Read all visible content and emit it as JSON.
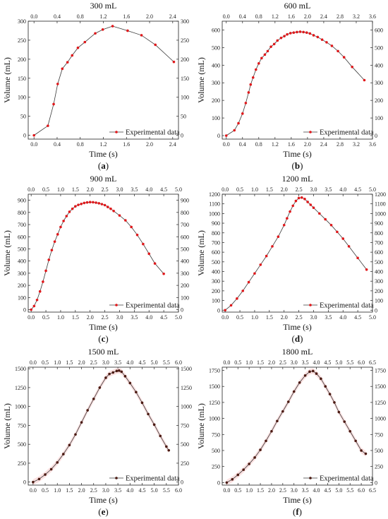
{
  "colors": {
    "red_series": "#e0181b",
    "dark_series": "#4a1a12",
    "line_dark": "#3a3a3a",
    "band": "#f8c8c8"
  },
  "chart_data": [
    {
      "type": "line",
      "title": "300 mL",
      "panel_label": "(a)",
      "xlabel": "Time (s)",
      "ylabel": "Volume (mL)",
      "xlim": [
        -0.1,
        2.5
      ],
      "ylim": [
        -10,
        300
      ],
      "xticks": [
        0.0,
        0.4,
        0.8,
        1.2,
        1.6,
        2.0,
        2.4
      ],
      "xtick_labels": [
        "0.0",
        "0.4",
        "0.8",
        "1.2",
        "1.6",
        "2.0",
        "2.4"
      ],
      "yticks": [
        0,
        50,
        100,
        150,
        200,
        250,
        300
      ],
      "ytick_labels": [
        "0",
        "50",
        "100",
        "150",
        "200",
        "250",
        "300"
      ],
      "legend": "Experimental data",
      "marker": "red",
      "band": false,
      "series": [
        {
          "name": "Experimental data",
          "x": [
            0.0,
            0.24,
            0.34,
            0.41,
            0.49,
            0.58,
            0.66,
            0.76,
            0.88,
            1.06,
            1.19,
            1.36,
            1.62,
            1.86,
            2.1,
            2.42
          ],
          "y": [
            0,
            25,
            82,
            135,
            175,
            192,
            210,
            230,
            245,
            268,
            278,
            287,
            275,
            263,
            238,
            193
          ]
        }
      ]
    },
    {
      "type": "line",
      "title": "600 mL",
      "panel_label": "(b)",
      "xlabel": "Time (s)",
      "ylabel": "Volume (mL)",
      "xlim": [
        -0.1,
        3.6
      ],
      "ylim": [
        -20,
        650
      ],
      "xticks": [
        0.0,
        0.4,
        0.8,
        1.2,
        1.6,
        2.0,
        2.4,
        2.8,
        3.2,
        3.6
      ],
      "xtick_labels": [
        "0.0",
        "0.4",
        "0.8",
        "1.2",
        "1.6",
        "2.0",
        "2.4",
        "2.8",
        "3.2",
        "3.6"
      ],
      "yticks": [
        0,
        100,
        200,
        300,
        400,
        500,
        600
      ],
      "ytick_labels": [
        "0",
        "100",
        "200",
        "300",
        "400",
        "500",
        "600"
      ],
      "legend": "Experimental data",
      "marker": "red",
      "band": false,
      "series": [
        {
          "name": "Experimental data",
          "x": [
            0.0,
            0.2,
            0.3,
            0.4,
            0.48,
            0.55,
            0.6,
            0.66,
            0.73,
            0.8,
            0.87,
            0.95,
            1.02,
            1.1,
            1.18,
            1.26,
            1.35,
            1.43,
            1.5,
            1.58,
            1.66,
            1.74,
            1.82,
            1.9,
            1.98,
            2.06,
            2.15,
            2.25,
            2.36,
            2.47,
            2.6,
            2.75,
            2.9,
            3.1,
            3.4
          ],
          "y": [
            0,
            30,
            70,
            125,
            185,
            245,
            290,
            330,
            375,
            410,
            440,
            460,
            480,
            505,
            520,
            540,
            555,
            565,
            575,
            582,
            585,
            588,
            590,
            588,
            585,
            580,
            570,
            560,
            545,
            530,
            510,
            480,
            445,
            390,
            315
          ]
        }
      ]
    },
    {
      "type": "line",
      "title": "900 mL",
      "panel_label": "(c)",
      "xlabel": "Time (s)",
      "ylabel": "Volume (mL)",
      "xlim": [
        -0.1,
        5.0
      ],
      "ylim": [
        -20,
        950
      ],
      "xticks": [
        0.0,
        0.5,
        1.0,
        1.5,
        2.0,
        2.5,
        3.0,
        3.5,
        4.0,
        4.5,
        5.0
      ],
      "xtick_labels": [
        "0.0",
        "0.5",
        "1.0",
        "1.5",
        "2.0",
        "2.5",
        "3.0",
        "3.5",
        "4.0",
        "4.5",
        "5.0"
      ],
      "yticks": [
        0,
        100,
        200,
        300,
        400,
        500,
        600,
        700,
        800,
        900
      ],
      "ytick_labels": [
        "0",
        "100",
        "200",
        "300",
        "400",
        "500",
        "600",
        "700",
        "800",
        "900"
      ],
      "legend": "Experimental data",
      "marker": "red",
      "band": false,
      "series": [
        {
          "name": "Experimental data",
          "x": [
            0.0,
            0.1,
            0.2,
            0.3,
            0.4,
            0.5,
            0.6,
            0.7,
            0.8,
            0.9,
            1.0,
            1.1,
            1.2,
            1.3,
            1.4,
            1.5,
            1.6,
            1.7,
            1.8,
            1.9,
            2.0,
            2.1,
            2.2,
            2.3,
            2.4,
            2.5,
            2.6,
            2.7,
            2.8,
            3.0,
            3.2,
            3.4,
            3.6,
            3.8,
            4.0,
            4.2,
            4.5
          ],
          "y": [
            0,
            30,
            80,
            150,
            230,
            320,
            410,
            490,
            560,
            620,
            680,
            730,
            770,
            805,
            830,
            850,
            862,
            870,
            878,
            882,
            885,
            884,
            880,
            875,
            868,
            860,
            845,
            830,
            812,
            775,
            735,
            680,
            615,
            540,
            460,
            380,
            295
          ]
        }
      ]
    },
    {
      "type": "line",
      "title": "1200 mL",
      "panel_label": "(d)",
      "xlabel": "Time (s)",
      "ylabel": "Volume (mL)",
      "xlim": [
        -0.1,
        5.0
      ],
      "ylim": [
        -20,
        1200
      ],
      "xticks": [
        0.0,
        0.5,
        1.0,
        1.5,
        2.0,
        2.5,
        3.0,
        3.5,
        4.0,
        4.5,
        5.0
      ],
      "xtick_labels": [
        "0.0",
        "0.5",
        "1.0",
        "1.5",
        "2.0",
        "2.5",
        "3.0",
        "3.5",
        "4.0",
        "4.5",
        "5.0"
      ],
      "yticks": [
        0,
        100,
        200,
        300,
        400,
        500,
        600,
        700,
        800,
        900,
        1000,
        1100,
        1200
      ],
      "ytick_labels": [
        "0",
        "100",
        "200",
        "300",
        "400",
        "500",
        "600",
        "700",
        "800",
        "900",
        "1000",
        "1100",
        "1200"
      ],
      "legend": "Experimental data",
      "marker": "red",
      "band": false,
      "series": [
        {
          "name": "Experimental data",
          "x": [
            0.0,
            0.2,
            0.4,
            0.6,
            0.8,
            1.0,
            1.2,
            1.4,
            1.6,
            1.8,
            2.0,
            2.1,
            2.2,
            2.3,
            2.4,
            2.5,
            2.6,
            2.7,
            2.8,
            2.9,
            3.0,
            3.2,
            3.4,
            3.6,
            3.8,
            4.0,
            4.2,
            4.5,
            4.8
          ],
          "y": [
            0,
            50,
            120,
            200,
            290,
            380,
            470,
            560,
            660,
            760,
            880,
            950,
            1020,
            1080,
            1130,
            1160,
            1165,
            1150,
            1120,
            1090,
            1060,
            1000,
            940,
            880,
            810,
            740,
            660,
            540,
            420
          ]
        }
      ]
    },
    {
      "type": "line",
      "title": "1500 mL",
      "panel_label": "(e)",
      "xlabel": "Time (s)",
      "ylabel": "Volume (mL)",
      "xlim": [
        -0.2,
        6.0
      ],
      "ylim": [
        -40,
        1520
      ],
      "xticks": [
        0.0,
        0.5,
        1.0,
        1.5,
        2.0,
        2.5,
        3.0,
        3.5,
        4.0,
        4.5,
        5.0,
        5.5,
        6.0
      ],
      "xtick_labels": [
        "0.0",
        "0.5",
        "1.0",
        "1.5",
        "2.0",
        "2.5",
        "3.0",
        "3.5",
        "4.0",
        "4.5",
        "5.0",
        "5.5",
        "6.0"
      ],
      "yticks": [
        0,
        250,
        500,
        750,
        1000,
        1250,
        1500
      ],
      "ytick_labels": [
        "0",
        "250",
        "500",
        "750",
        "1000",
        "1250",
        "1500"
      ],
      "legend": "Experimental data",
      "marker": "dark",
      "band": true,
      "series": [
        {
          "name": "Experimental data",
          "x": [
            0.0,
            0.25,
            0.5,
            0.75,
            1.0,
            1.25,
            1.5,
            1.75,
            2.0,
            2.25,
            2.5,
            2.75,
            3.0,
            3.15,
            3.3,
            3.45,
            3.55,
            3.65,
            3.8,
            4.0,
            4.25,
            4.5,
            4.75,
            5.0,
            5.25,
            5.5,
            5.6
          ],
          "y": [
            0,
            40,
            100,
            170,
            260,
            370,
            490,
            630,
            790,
            950,
            1100,
            1250,
            1380,
            1430,
            1450,
            1470,
            1475,
            1460,
            1400,
            1310,
            1190,
            1050,
            900,
            760,
            610,
            470,
            420
          ]
        }
      ]
    },
    {
      "type": "line",
      "title": "1800 mL",
      "panel_label": "(f)",
      "xlabel": "Time (s)",
      "ylabel": "Volume (mL)",
      "xlim": [
        -0.2,
        6.5
      ],
      "ylim": [
        -40,
        1800
      ],
      "xticks": [
        0.0,
        0.5,
        1.0,
        1.5,
        2.0,
        2.5,
        3.0,
        3.5,
        4.0,
        4.5,
        5.0,
        5.5,
        6.0,
        6.5
      ],
      "xtick_labels": [
        "0.0",
        "0.5",
        "1.0",
        "1.5",
        "2.0",
        "2.5",
        "3.0",
        "3.5",
        "4.0",
        "4.5",
        "5.0",
        "5.5",
        "6.0",
        "6.5"
      ],
      "yticks": [
        0,
        250,
        500,
        750,
        1000,
        1250,
        1500,
        1750
      ],
      "ytick_labels": [
        "0",
        "250",
        "500",
        "750",
        "1000",
        "1250",
        "1500",
        "1750"
      ],
      "legend": "Experimental data",
      "marker": "dark",
      "band": true,
      "series": [
        {
          "name": "Experimental data",
          "x": [
            0.0,
            0.25,
            0.5,
            0.75,
            1.0,
            1.25,
            1.5,
            1.75,
            2.0,
            2.25,
            2.5,
            2.75,
            3.0,
            3.25,
            3.5,
            3.7,
            3.85,
            4.0,
            4.2,
            4.4,
            4.6,
            4.8,
            5.0,
            5.25,
            5.5,
            5.75,
            6.0,
            6.2
          ],
          "y": [
            0,
            50,
            120,
            200,
            290,
            390,
            510,
            650,
            800,
            960,
            1110,
            1260,
            1420,
            1560,
            1670,
            1730,
            1740,
            1700,
            1620,
            1500,
            1380,
            1250,
            1100,
            950,
            800,
            650,
            500,
            450
          ]
        }
      ]
    }
  ]
}
